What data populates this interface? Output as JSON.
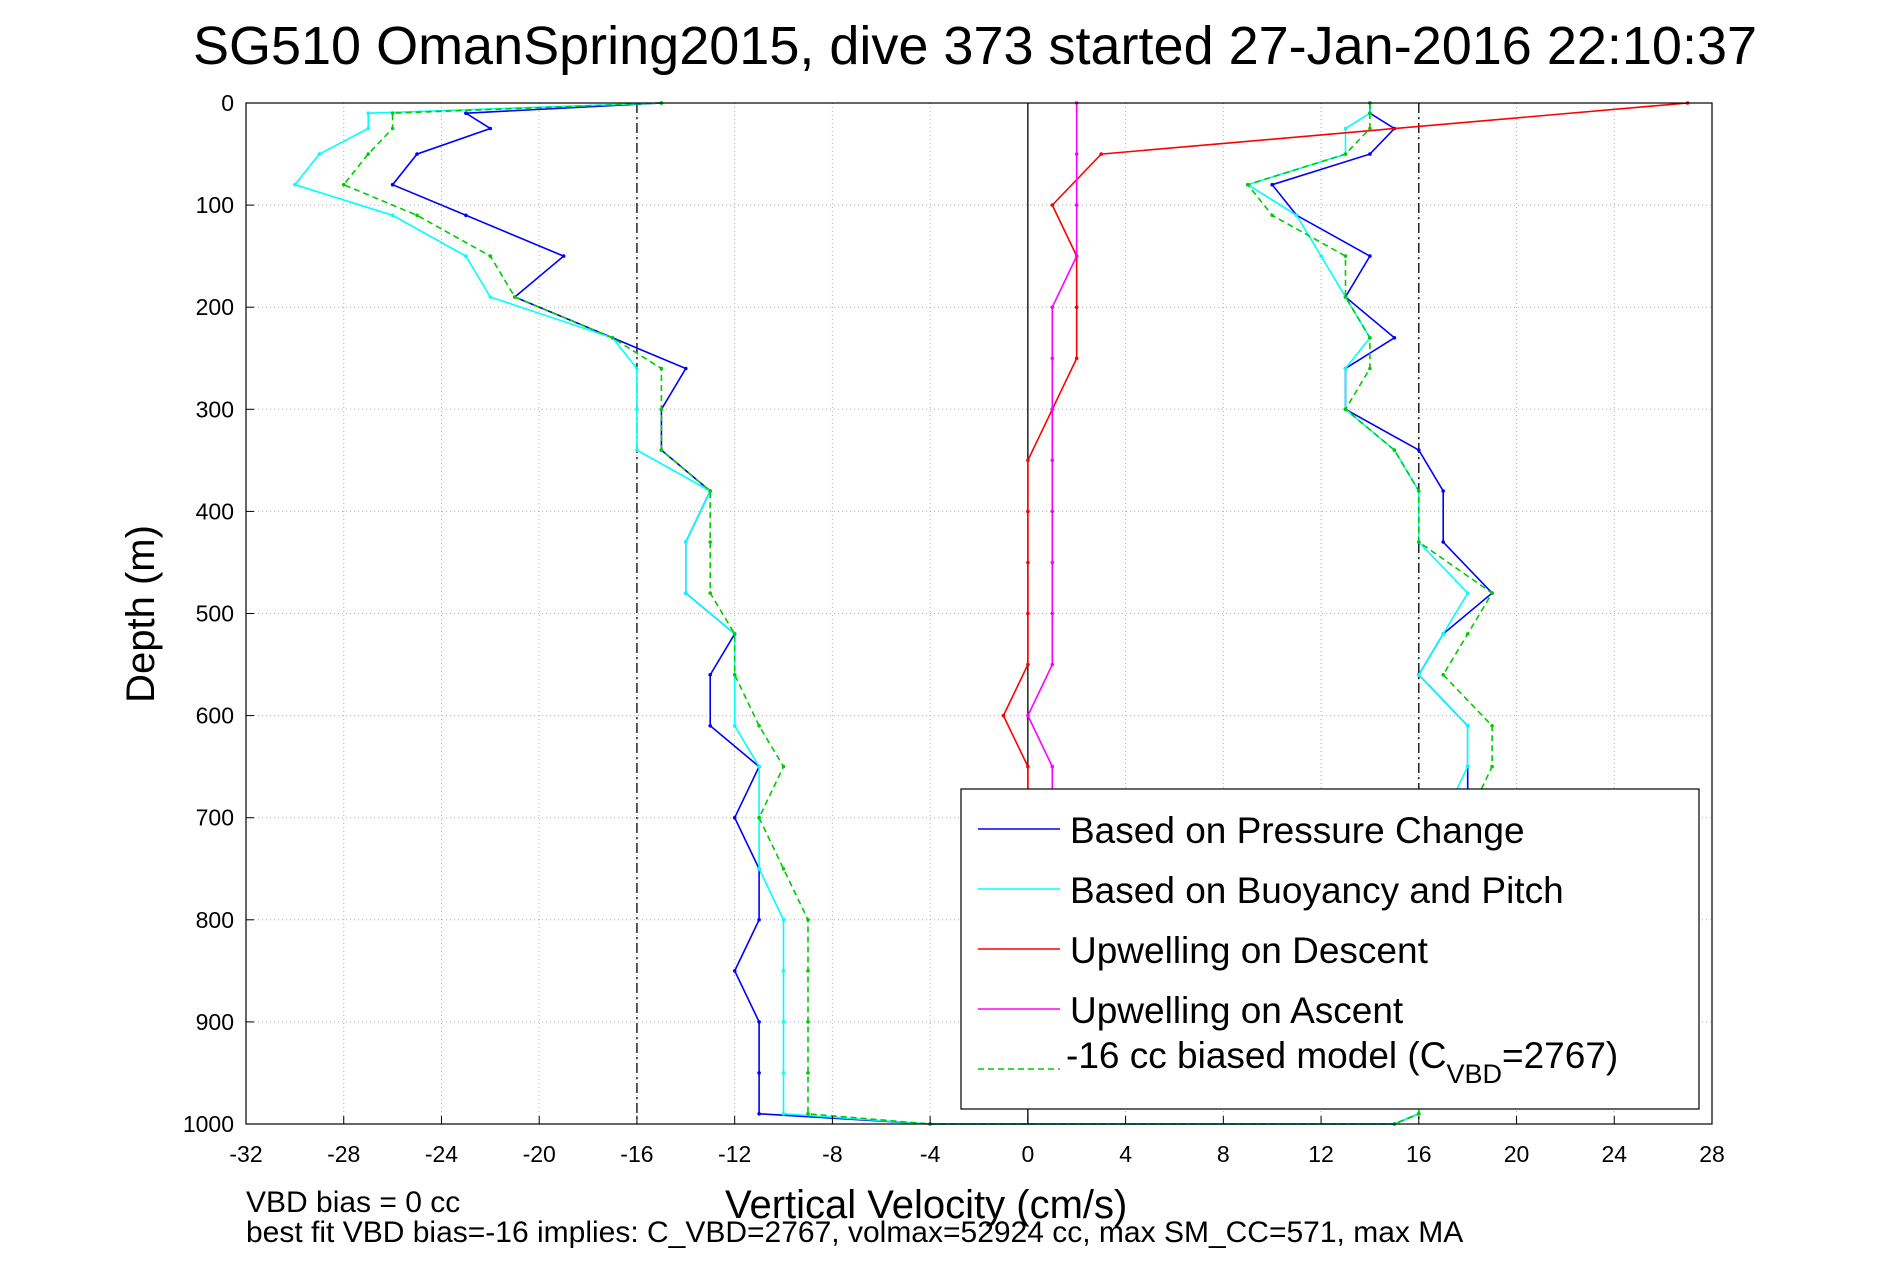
{
  "chart_data": {
    "type": "line",
    "title": "SG510 OmanSpring2015, dive 373 started 27-Jan-2016 22:10:37",
    "xlabel": "Vertical Velocity (cm/s)",
    "ylabel": "Depth (m)",
    "xlim": [
      -32,
      28
    ],
    "ylim": [
      1000,
      0
    ],
    "y_reversed": true,
    "grid": true,
    "x_ticks": [
      "-32",
      "-28",
      "-24",
      "-20",
      "-16",
      "-12",
      "-8",
      "-4",
      "0",
      "4",
      "8",
      "12",
      "16",
      "20",
      "24",
      "28"
    ],
    "y_ticks": [
      "0",
      "100",
      "200",
      "300",
      "400",
      "500",
      "600",
      "700",
      "800",
      "900",
      "1000"
    ],
    "reference_lines": [
      {
        "x": -16,
        "style": "dash-dot",
        "color": "#000000"
      },
      {
        "x": 0,
        "style": "solid",
        "color": "#000000"
      },
      {
        "x": 16,
        "style": "dash-dot",
        "color": "#000000"
      }
    ],
    "legend_position": "bottom-right",
    "series": [
      {
        "name": "Based on Pressure Change",
        "color": "#0000ff",
        "style": "solid",
        "depth": [
          0,
          10,
          25,
          50,
          80,
          110,
          150,
          190,
          230,
          260,
          300,
          340,
          380,
          430,
          480,
          520,
          560,
          610,
          650,
          700,
          750,
          800,
          850,
          900,
          950,
          990,
          1000
        ],
        "descent": [
          -15,
          -23,
          -22,
          -25,
          -26,
          -23,
          -19,
          -21,
          -17,
          -14,
          -15,
          -15,
          -13,
          -14,
          -14,
          -12,
          -13,
          -13,
          -11,
          -12,
          -11,
          -11,
          -12,
          -11,
          -11,
          -11,
          -4
        ],
        "ascent": [
          14,
          14,
          15,
          14,
          10,
          11,
          14,
          13,
          15,
          13,
          13,
          16,
          17,
          17,
          19,
          17,
          16,
          18,
          18,
          18,
          16,
          16,
          16,
          16,
          16,
          16,
          15
        ]
      },
      {
        "name": "Based on Buoyancy and Pitch",
        "color": "#00ffff",
        "style": "solid",
        "depth": [
          0,
          10,
          25,
          50,
          80,
          110,
          150,
          190,
          230,
          260,
          300,
          340,
          380,
          430,
          480,
          520,
          560,
          610,
          650,
          700,
          750,
          800,
          850,
          900,
          950,
          990,
          1000
        ],
        "descent": [
          -15,
          -27,
          -27,
          -29,
          -30,
          -26,
          -23,
          -22,
          -17,
          -16,
          -16,
          -16,
          -13,
          -14,
          -14,
          -12,
          -12,
          -12,
          -11,
          -11,
          -11,
          -10,
          -10,
          -10,
          -10,
          -10,
          -4
        ],
        "ascent": [
          14,
          14,
          13,
          13,
          9,
          11,
          12,
          13,
          14,
          13,
          13,
          15,
          16,
          16,
          18,
          17,
          16,
          18,
          18,
          17,
          16,
          16,
          16,
          16,
          16,
          16,
          15
        ]
      },
      {
        "name": "Upwelling on Descent",
        "color": "#ff0000",
        "style": "solid",
        "depth": [
          0,
          50,
          100,
          150,
          200,
          250,
          300,
          350,
          400,
          450,
          500,
          550,
          600,
          650,
          680
        ],
        "value": [
          27,
          3,
          1,
          2,
          2,
          2,
          1,
          0,
          0,
          0,
          0,
          0,
          -1,
          0,
          0
        ]
      },
      {
        "name": "Upwelling on Ascent",
        "color": "#ff00ff",
        "style": "solid",
        "depth": [
          0,
          50,
          100,
          150,
          200,
          250,
          300,
          350,
          400,
          450,
          500,
          550,
          600,
          650,
          680
        ],
        "value": [
          2,
          2,
          2,
          2,
          1,
          1,
          1,
          1,
          1,
          1,
          1,
          1,
          0,
          1,
          1
        ]
      },
      {
        "name": "-16 cc biased model (C_VBD=2767)",
        "color": "#00cc00",
        "style": "dashed",
        "depth": [
          0,
          10,
          25,
          50,
          80,
          110,
          150,
          190,
          230,
          260,
          300,
          340,
          380,
          430,
          480,
          520,
          560,
          610,
          650,
          700,
          750,
          800,
          850,
          900,
          950,
          990,
          1000
        ],
        "descent": [
          -15,
          -26,
          -26,
          -27,
          -28,
          -25,
          -22,
          -21,
          -17,
          -15,
          -15,
          -15,
          -13,
          -13,
          -13,
          -12,
          -12,
          -11,
          -10,
          -11,
          -10,
          -9,
          -9,
          -9,
          -9,
          -9,
          -4
        ],
        "ascent": [
          14,
          14,
          14,
          13,
          9,
          10,
          13,
          13,
          14,
          14,
          13,
          15,
          16,
          16,
          19,
          18,
          17,
          19,
          19,
          18,
          16,
          16,
          16,
          16,
          16,
          16,
          15
        ]
      }
    ],
    "legend": [
      {
        "text": "Based on Pressure Change",
        "color": "#0000ff",
        "style": "solid"
      },
      {
        "text": "Based on Buoyancy and Pitch",
        "color": "#00ffff",
        "style": "solid"
      },
      {
        "text": "Upwelling on Descent",
        "color": "#ff0000",
        "style": "solid"
      },
      {
        "text": "Upwelling on Ascent",
        "color": "#ff00ff",
        "style": "solid"
      },
      {
        "text_prefix": "-16 cc biased model (C",
        "text_sub": "VBD",
        "text_suffix": "=2767)",
        "color": "#00cc00",
        "style": "dashed"
      }
    ],
    "notes": [
      "VBD bias = 0 cc",
      "best fit VBD bias=-16 implies: C_VBD=2767, volmax=52924 cc, max SM_CC=571, max MA"
    ]
  }
}
